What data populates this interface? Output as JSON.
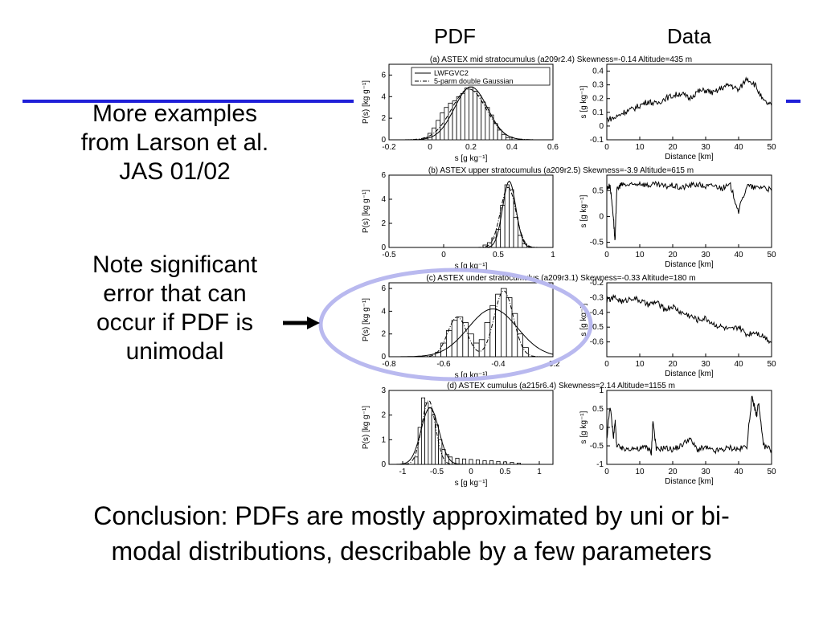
{
  "slide": {
    "col_pdf": "PDF",
    "col_data": "Data",
    "left_text_1": [
      "More examples",
      "from Larson et al.",
      "JAS 01/02"
    ],
    "left_text_2": [
      "Note significant",
      "error that can",
      "occur if PDF is",
      "unimodal"
    ],
    "conclusion": [
      "Conclusion: PDFs are mostly approximated by uni or bi-",
      "modal distributions, describable by a few parameters"
    ]
  },
  "colors": {
    "accent_line": "#1f1fd8",
    "ellipse": "#b9b9ef",
    "arrow": "#000000"
  },
  "chart_data": [
    {
      "type": "bar",
      "title": "(a)  ASTEX mid stratocumulus (a209r2.4) Skewness=-0.14 Altitude=435 m",
      "xlabel": "s  [g kg⁻¹]",
      "ylabel": "P(s)  [kg g⁻¹]",
      "xlim": [
        -0.2,
        0.6
      ],
      "ylim": [
        0,
        7
      ],
      "xticks": [
        "-0.2",
        "0",
        "0.2",
        "0.4",
        "0.6"
      ],
      "yticks": [
        "0",
        "2",
        "4",
        "6"
      ],
      "legend": [
        "LWFGVC2",
        "5-parm double Gaussian"
      ],
      "legend_loc": "top-left",
      "bins_x": [
        -0.02,
        0.0,
        0.02,
        0.04,
        0.06,
        0.08,
        0.1,
        0.12,
        0.14,
        0.16,
        0.18,
        0.2,
        0.22,
        0.24,
        0.26,
        0.28,
        0.3,
        0.32,
        0.34,
        0.36,
        0.38
      ],
      "bins_y": [
        0.2,
        0.6,
        1.1,
        1.8,
        2.5,
        3.0,
        3.4,
        3.6,
        4.0,
        4.3,
        4.8,
        4.9,
        4.5,
        4.1,
        3.5,
        3.0,
        2.3,
        1.5,
        0.9,
        0.5,
        0.2
      ],
      "curve1": {
        "mu": 0.2,
        "sigma": 0.08,
        "amp": 4.9
      },
      "curve2": {
        "mu": 0.19,
        "sigma": 0.085,
        "amp": 4.7
      }
    },
    {
      "type": "line",
      "title": "",
      "xlabel": "Distance [km]",
      "ylabel": "s  [g kg⁻¹]",
      "xlim": [
        0,
        50
      ],
      "ylim": [
        -0.1,
        0.45
      ],
      "xticks": [
        "0",
        "10",
        "20",
        "30",
        "40",
        "50"
      ],
      "yticks": [
        "-0.1",
        "0",
        "0.1",
        "0.2",
        "0.3",
        "0.4"
      ],
      "x": [
        0,
        2.5,
        5,
        7.5,
        10,
        12.5,
        15,
        17.5,
        20,
        22.5,
        25,
        27.5,
        30,
        32.5,
        35,
        37.5,
        40,
        42.5,
        45,
        47.5,
        50
      ],
      "y": [
        0.05,
        0.06,
        0.1,
        0.12,
        0.15,
        0.18,
        0.16,
        0.2,
        0.22,
        0.24,
        0.2,
        0.25,
        0.26,
        0.24,
        0.28,
        0.3,
        0.26,
        0.35,
        0.3,
        0.18,
        0.15
      ]
    },
    {
      "type": "bar",
      "title": "(b)  ASTEX upper stratocumulus (a209r2.5) Skewness=-3.9 Altitude=615 m",
      "xlabel": "s  [g kg⁻¹]",
      "ylabel": "P(s)  [kg g⁻¹]",
      "xlim": [
        -0.5,
        1
      ],
      "ylim": [
        0,
        6
      ],
      "xticks": [
        "-0.5",
        "0",
        "0.5",
        "1"
      ],
      "yticks": [
        "0",
        "2",
        "4",
        "6"
      ],
      "bins_x": [
        0.38,
        0.42,
        0.46,
        0.5,
        0.54,
        0.58,
        0.62,
        0.66,
        0.7,
        0.74
      ],
      "bins_y": [
        0.2,
        0.4,
        0.8,
        1.5,
        3.5,
        5.2,
        4.8,
        2.5,
        1.0,
        0.3
      ],
      "curve1": {
        "mu": 0.6,
        "sigma": 0.06,
        "amp": 5.5
      },
      "curve2": {
        "mu": 0.59,
        "sigma": 0.07,
        "amp": 5.0
      }
    },
    {
      "type": "line",
      "title": "",
      "xlabel": "Distance [km]",
      "ylabel": "s  [g kg⁻¹]",
      "xlim": [
        0,
        50
      ],
      "ylim": [
        -0.6,
        0.8
      ],
      "xticks": [
        "0",
        "10",
        "20",
        "30",
        "40",
        "50"
      ],
      "yticks": [
        "-0.5",
        "0",
        "0.5"
      ],
      "x": [
        0,
        1,
        2,
        2.5,
        3,
        4,
        5,
        7.5,
        10,
        12.5,
        15,
        17.5,
        20,
        22.5,
        25,
        27.5,
        30,
        32.5,
        35,
        37.5,
        40,
        42.5,
        45,
        47.5,
        50
      ],
      "y": [
        0.55,
        0.6,
        0.0,
        -0.5,
        0.5,
        0.6,
        0.62,
        0.6,
        0.65,
        0.6,
        0.62,
        0.58,
        0.6,
        0.55,
        0.6,
        0.62,
        0.58,
        0.6,
        0.55,
        0.6,
        0.1,
        0.6,
        0.55,
        0.58,
        0.5
      ]
    },
    {
      "type": "bar",
      "title": "(c)  ASTEX under stratocumulus (a209r3.1) Skewness=-0.33 Altitude=180 m",
      "xlabel": "s  [g kg⁻¹]",
      "ylabel": "P(s)  [kg g⁻¹]",
      "xlim": [
        -0.8,
        -0.2
      ],
      "ylim": [
        0,
        6.5
      ],
      "xticks": [
        "-0.8",
        "-0.6",
        "-0.4",
        "-0.2"
      ],
      "yticks": [
        "0",
        "2",
        "4",
        "6"
      ],
      "bins_x": [
        -0.62,
        -0.6,
        -0.58,
        -0.56,
        -0.54,
        -0.52,
        -0.5,
        -0.48,
        -0.46,
        -0.44,
        -0.42,
        -0.4,
        -0.38,
        -0.36,
        -0.34,
        -0.32,
        -0.3
      ],
      "bins_y": [
        0.4,
        1.2,
        2.3,
        3.2,
        3.5,
        3.0,
        2.0,
        1.2,
        1.5,
        3.0,
        4.5,
        5.5,
        6.0,
        5.2,
        3.8,
        2.0,
        0.8
      ],
      "curve1": {
        "mu": -0.42,
        "sigma": 0.09,
        "amp": 4.2
      },
      "curve2_bimodal": [
        {
          "mu": -0.55,
          "sigma": 0.035,
          "amp": 3.5
        },
        {
          "mu": -0.38,
          "sigma": 0.035,
          "amp": 5.8
        }
      ]
    },
    {
      "type": "line",
      "title": "",
      "xlabel": "Distance [km]",
      "ylabel": "s  [g kg⁻¹]",
      "xlim": [
        0,
        50
      ],
      "ylim": [
        -0.7,
        -0.2
      ],
      "y_inverted": true,
      "xticks": [
        "0",
        "10",
        "20",
        "30",
        "40",
        "50"
      ],
      "yticks": [
        "-0.2",
        "-0.3",
        "-0.4",
        "-0.5",
        "-0.6"
      ],
      "x": [
        0,
        2.5,
        5,
        7.5,
        10,
        12.5,
        15,
        17.5,
        20,
        22.5,
        25,
        27.5,
        30,
        32.5,
        35,
        37.5,
        40,
        42.5,
        45,
        47.5,
        50
      ],
      "y": [
        -0.32,
        -0.3,
        -0.33,
        -0.3,
        -0.32,
        -0.35,
        -0.33,
        -0.38,
        -0.36,
        -0.4,
        -0.42,
        -0.45,
        -0.44,
        -0.48,
        -0.5,
        -0.52,
        -0.5,
        -0.55,
        -0.53,
        -0.56,
        -0.6
      ]
    },
    {
      "type": "bar",
      "title": "(d)  ASTEX cumulus (a215r6.4) Skewness=2.14 Altitude=1155 m",
      "xlabel": "s  [g kg⁻¹]",
      "ylabel": "P(s)  [kg g⁻¹]",
      "xlim": [
        -1.2,
        1.2
      ],
      "ylim": [
        0,
        3
      ],
      "xticks": [
        "-1",
        "-0.5",
        "0",
        "0.5",
        "1"
      ],
      "yticks": [
        "0",
        "1",
        "2",
        "3"
      ],
      "bins_x": [
        -0.8,
        -0.75,
        -0.7,
        -0.65,
        -0.6,
        -0.55,
        -0.5,
        -0.45,
        -0.4,
        -0.35,
        -0.3,
        -0.2,
        -0.1,
        0.0,
        0.1,
        0.2,
        0.3,
        0.4,
        0.5,
        0.6,
        0.7
      ],
      "bins_y": [
        0.3,
        1.5,
        2.7,
        2.5,
        2.3,
        2.0,
        1.6,
        1.0,
        0.6,
        0.4,
        0.3,
        0.25,
        0.22,
        0.2,
        0.18,
        0.15,
        0.15,
        0.12,
        0.1,
        0.08,
        0.05
      ],
      "curve1": {
        "mu": -0.6,
        "sigma": 0.13,
        "amp": 2.3
      },
      "curve2": {
        "mu": -0.62,
        "sigma": 0.1,
        "amp": 2.6
      }
    },
    {
      "type": "line",
      "title": "",
      "xlabel": "Distance [km]",
      "ylabel": "s  [g kg⁻¹]",
      "xlim": [
        0,
        50
      ],
      "ylim": [
        -1,
        1
      ],
      "xticks": [
        "0",
        "10",
        "20",
        "30",
        "40",
        "50"
      ],
      "yticks": [
        "-1",
        "-0.5",
        "0",
        "0.5",
        "1"
      ],
      "x": [
        0,
        1,
        2,
        2.5,
        3,
        5,
        7.5,
        10,
        12,
        13.5,
        14,
        15,
        17.5,
        20,
        22.5,
        25,
        27.5,
        30,
        32.5,
        35,
        37.5,
        40,
        42.5,
        44,
        45,
        45.5,
        46,
        47.5,
        50
      ],
      "y": [
        -0.3,
        0.6,
        -0.3,
        0.2,
        -0.5,
        -0.6,
        -0.55,
        -0.6,
        -0.5,
        -0.7,
        0.2,
        -0.6,
        -0.55,
        -0.6,
        -0.5,
        -0.3,
        -0.6,
        -0.55,
        -0.65,
        -0.6,
        -0.55,
        -0.6,
        -0.5,
        0.8,
        0.5,
        0.3,
        0.7,
        -0.5,
        -0.6
      ]
    }
  ]
}
